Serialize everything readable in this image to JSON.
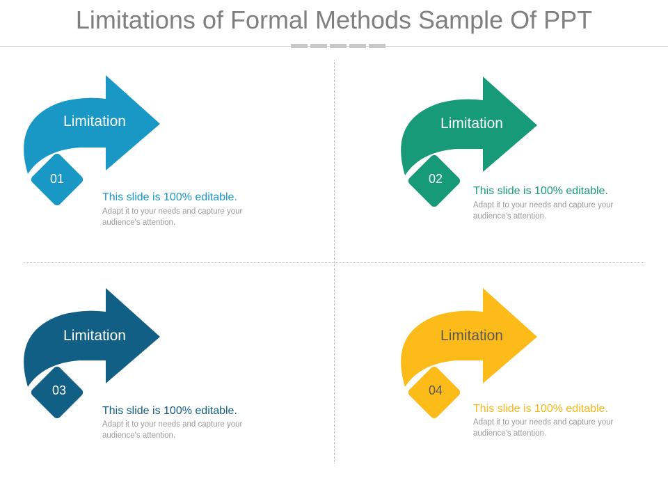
{
  "title": "Limitations of Formal Methods Sample Of PPT",
  "items": [
    {
      "label": "Limitation",
      "number": "01",
      "heading": "This slide is 100% editable.",
      "description": "Adapt it to your needs and capture your audience's attention.",
      "color": "#1998c6"
    },
    {
      "label": "Limitation",
      "number": "02",
      "heading": "This slide is 100% editable.",
      "description": "Adapt it to your needs and capture your audience's attention.",
      "color": "#169a78"
    },
    {
      "label": "Limitation",
      "number": "03",
      "heading": "This slide is 100% editable.",
      "description": "Adapt it to your needs and capture your audience's attention.",
      "color": "#125f85"
    },
    {
      "label": "Limitation",
      "number": "04",
      "heading": "This slide is 100% editable.",
      "description": "Adapt it to your needs and capture your audience's attention.",
      "color": "#fdbb1a"
    }
  ]
}
